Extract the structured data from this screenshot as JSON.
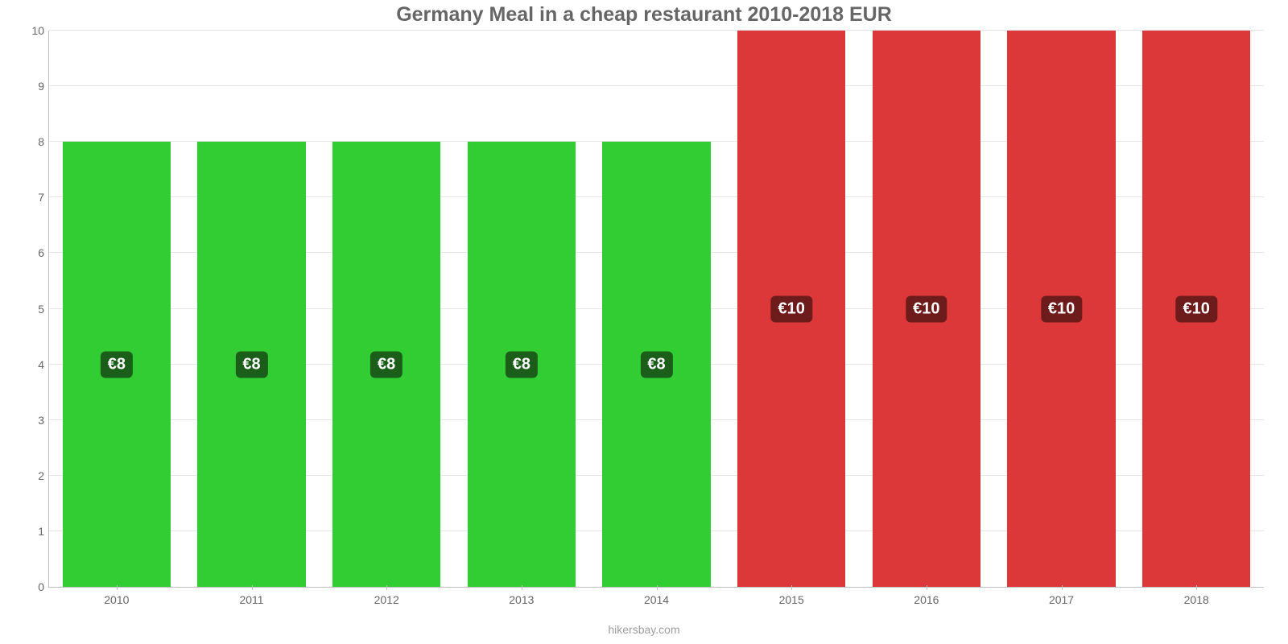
{
  "chart": {
    "type": "bar",
    "title": "Germany Meal in a cheap restaurant 2010-2018 EUR",
    "title_fontsize": 25,
    "title_color": "#666666",
    "categories": [
      "2010",
      "2011",
      "2012",
      "2013",
      "2014",
      "2015",
      "2016",
      "2017",
      "2018"
    ],
    "values": [
      8,
      8,
      8,
      8,
      8,
      10,
      10,
      10,
      10
    ],
    "value_labels": [
      "€8",
      "€8",
      "€8",
      "€8",
      "€8",
      "€10",
      "€10",
      "€10",
      "€10"
    ],
    "bar_colors": [
      "#32cd32",
      "#32cd32",
      "#32cd32",
      "#32cd32",
      "#32cd32",
      "#dc3839",
      "#dc3839",
      "#dc3839",
      "#dc3839"
    ],
    "bar_label_bg": [
      "#1a5e1a",
      "#1a5e1a",
      "#1a5e1a",
      "#1a5e1a",
      "#1a5e1a",
      "#6e1b1b",
      "#6e1b1b",
      "#6e1b1b",
      "#6e1b1b"
    ],
    "bar_label_text_color": "#ffffff",
    "bar_label_fontsize": 20,
    "bar_width": 0.8,
    "ylim": [
      0,
      10
    ],
    "yticks": [
      0,
      1,
      2,
      3,
      4,
      5,
      6,
      7,
      8,
      9,
      10
    ],
    "grid_color": "#e6e6e6",
    "axis_color": "#bfbfbf",
    "tick_font_color": "#666666",
    "tick_fontsize": 14,
    "background_color": "#ffffff",
    "caption": "hikersbay.com",
    "caption_color": "#9e9e9e",
    "caption_fontsize": 14
  }
}
